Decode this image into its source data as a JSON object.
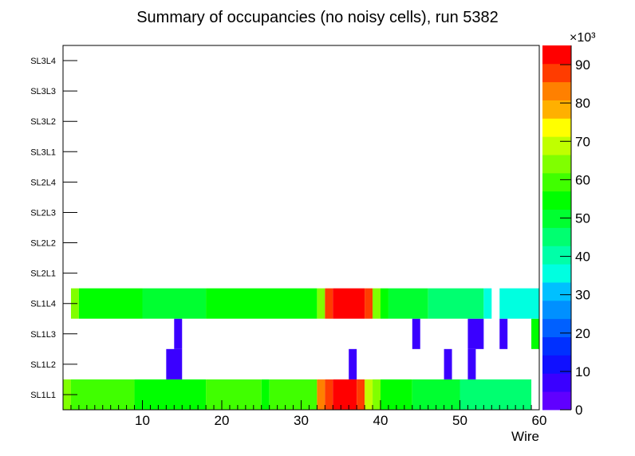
{
  "chart_data": {
    "type": "heatmap",
    "title": "Summary of occupancies (no noisy cells), run 5382",
    "xlabel": "Wire",
    "ylabel": "",
    "xlim": [
      0,
      60
    ],
    "x_ticks": [
      10,
      20,
      30,
      40,
      50,
      60
    ],
    "y_categories": [
      "SL1L1",
      "SL1L2",
      "SL1L3",
      "SL1L4",
      "SL2L1",
      "SL2L2",
      "SL2L3",
      "SL2L4",
      "SL3L1",
      "SL3L2",
      "SL3L3",
      "SL3L4"
    ],
    "z_scale_label": "×10³",
    "z_range": [
      0,
      95
    ],
    "z_ticks": [
      0,
      10,
      20,
      30,
      40,
      50,
      60,
      70,
      80,
      90
    ],
    "palette_colors": [
      "#6000ff",
      "#3a00ff",
      "#1010ff",
      "#0030ff",
      "#0060ff",
      "#0090ff",
      "#00c0ff",
      "#00ffe0",
      "#00ffa8",
      "#00ff70",
      "#00ff30",
      "#00ff00",
      "#40ff00",
      "#80ff00",
      "#c0ff00",
      "#ffff00",
      "#ffb000",
      "#ff8000",
      "#ff3c00",
      "#ff0000"
    ],
    "rows": [
      {
        "layer": "SL1L1",
        "segments": [
          {
            "x0": 0,
            "x1": 1,
            "v": 63
          },
          {
            "x0": 1,
            "x1": 9,
            "v": 60
          },
          {
            "x0": 9,
            "x1": 18,
            "v": 56
          },
          {
            "x0": 18,
            "x1": 25,
            "v": 60
          },
          {
            "x0": 25,
            "x1": 26,
            "v": 56
          },
          {
            "x0": 26,
            "x1": 32,
            "v": 60
          },
          {
            "x0": 32,
            "x1": 33,
            "v": 83
          },
          {
            "x0": 33,
            "x1": 34,
            "v": 88
          },
          {
            "x0": 34,
            "x1": 37,
            "v": 95
          },
          {
            "x0": 37,
            "x1": 38,
            "v": 90
          },
          {
            "x0": 38,
            "x1": 39,
            "v": 70
          },
          {
            "x0": 39,
            "x1": 40,
            "v": 64
          },
          {
            "x0": 40,
            "x1": 44,
            "v": 55
          },
          {
            "x0": 44,
            "x1": 50,
            "v": 48
          },
          {
            "x0": 50,
            "x1": 59,
            "v": 43
          }
        ]
      },
      {
        "layer": "SL1L2",
        "segments": [
          {
            "x0": 13,
            "x1": 15,
            "v": 5
          },
          {
            "x0": 36,
            "x1": 37,
            "v": 5
          },
          {
            "x0": 48,
            "x1": 49,
            "v": 5
          },
          {
            "x0": 51,
            "x1": 52,
            "v": 5
          }
        ]
      },
      {
        "layer": "SL1L3",
        "segments": [
          {
            "x0": 14,
            "x1": 15,
            "v": 5
          },
          {
            "x0": 44,
            "x1": 45,
            "v": 5
          },
          {
            "x0": 51,
            "x1": 53,
            "v": 5
          },
          {
            "x0": 55,
            "x1": 56,
            "v": 5
          },
          {
            "x0": 59,
            "x1": 60,
            "v": 55
          }
        ]
      },
      {
        "layer": "SL1L4",
        "segments": [
          {
            "x0": 1,
            "x1": 2,
            "v": 63
          },
          {
            "x0": 2,
            "x1": 10,
            "v": 56
          },
          {
            "x0": 10,
            "x1": 18,
            "v": 48
          },
          {
            "x0": 18,
            "x1": 32,
            "v": 56
          },
          {
            "x0": 32,
            "x1": 33,
            "v": 66
          },
          {
            "x0": 33,
            "x1": 34,
            "v": 86
          },
          {
            "x0": 34,
            "x1": 38,
            "v": 93
          },
          {
            "x0": 38,
            "x1": 39,
            "v": 86
          },
          {
            "x0": 39,
            "x1": 40,
            "v": 63
          },
          {
            "x0": 40,
            "x1": 41,
            "v": 56
          },
          {
            "x0": 41,
            "x1": 46,
            "v": 49
          },
          {
            "x0": 46,
            "x1": 53,
            "v": 45
          },
          {
            "x0": 53,
            "x1": 54,
            "v": 35
          },
          {
            "x0": 55,
            "x1": 60,
            "v": 37
          }
        ]
      },
      {
        "layer": "SL2L1",
        "segments": []
      },
      {
        "layer": "SL2L2",
        "segments": []
      },
      {
        "layer": "SL2L3",
        "segments": []
      },
      {
        "layer": "SL2L4",
        "segments": []
      },
      {
        "layer": "SL3L1",
        "segments": []
      },
      {
        "layer": "SL3L2",
        "segments": []
      },
      {
        "layer": "SL3L3",
        "segments": []
      },
      {
        "layer": "SL3L4",
        "segments": []
      }
    ]
  }
}
